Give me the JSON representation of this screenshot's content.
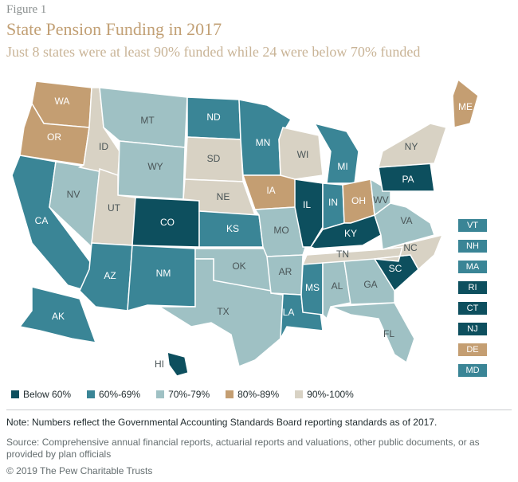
{
  "header": {
    "figure_label": "Figure 1",
    "title": "State Pension Funding in 2017",
    "subtitle": "Just 8 states were at least 90% funded while 24 were below 70% funded"
  },
  "colors": {
    "below_60": "#0d4f5e",
    "60_69": "#3a8596",
    "70_79": "#9fc1c4",
    "80_89": "#c49e72",
    "90_100": "#d8d2c4",
    "title": "#c2a075",
    "border": "#ffffff"
  },
  "map": {
    "states": [
      {
        "code": "WA",
        "category": "80_89"
      },
      {
        "code": "OR",
        "category": "80_89"
      },
      {
        "code": "CA",
        "category": "60_69"
      },
      {
        "code": "NV",
        "category": "70_79"
      },
      {
        "code": "ID",
        "category": "90_100"
      },
      {
        "code": "MT",
        "category": "70_79"
      },
      {
        "code": "WY",
        "category": "70_79"
      },
      {
        "code": "UT",
        "category": "90_100"
      },
      {
        "code": "AZ",
        "category": "60_69"
      },
      {
        "code": "CO",
        "category": "below_60"
      },
      {
        "code": "NM",
        "category": "60_69"
      },
      {
        "code": "ND",
        "category": "60_69"
      },
      {
        "code": "SD",
        "category": "90_100"
      },
      {
        "code": "NE",
        "category": "90_100"
      },
      {
        "code": "KS",
        "category": "60_69"
      },
      {
        "code": "OK",
        "category": "70_79"
      },
      {
        "code": "TX",
        "category": "70_79"
      },
      {
        "code": "MN",
        "category": "60_69"
      },
      {
        "code": "IA",
        "category": "80_89"
      },
      {
        "code": "MO",
        "category": "70_79"
      },
      {
        "code": "AR",
        "category": "70_79"
      },
      {
        "code": "LA",
        "category": "60_69"
      },
      {
        "code": "WI",
        "category": "90_100"
      },
      {
        "code": "IL",
        "category": "below_60"
      },
      {
        "code": "MI",
        "category": "60_69"
      },
      {
        "code": "IN",
        "category": "60_69"
      },
      {
        "code": "OH",
        "category": "80_89"
      },
      {
        "code": "KY",
        "category": "below_60"
      },
      {
        "code": "TN",
        "category": "90_100"
      },
      {
        "code": "MS",
        "category": "60_69"
      },
      {
        "code": "AL",
        "category": "70_79"
      },
      {
        "code": "GA",
        "category": "70_79"
      },
      {
        "code": "FL",
        "category": "70_79"
      },
      {
        "code": "SC",
        "category": "below_60"
      },
      {
        "code": "NC",
        "category": "90_100"
      },
      {
        "code": "VA",
        "category": "70_79"
      },
      {
        "code": "WV",
        "category": "70_79"
      },
      {
        "code": "PA",
        "category": "below_60"
      },
      {
        "code": "NY",
        "category": "90_100"
      },
      {
        "code": "ME",
        "category": "80_89"
      },
      {
        "code": "AK",
        "category": "60_69"
      },
      {
        "code": "HI",
        "category": "below_60"
      }
    ],
    "small_states": [
      {
        "code": "VT",
        "category": "60_69"
      },
      {
        "code": "NH",
        "category": "60_69"
      },
      {
        "code": "MA",
        "category": "60_69"
      },
      {
        "code": "RI",
        "category": "below_60"
      },
      {
        "code": "CT",
        "category": "below_60"
      },
      {
        "code": "NJ",
        "category": "below_60"
      },
      {
        "code": "DE",
        "category": "80_89"
      },
      {
        "code": "MD",
        "category": "60_69"
      }
    ]
  },
  "legend": [
    {
      "label": "Below 60%",
      "category": "below_60"
    },
    {
      "label": "60%-69%",
      "category": "60_69"
    },
    {
      "label": "70%-79%",
      "category": "70_79"
    },
    {
      "label": "80%-89%",
      "category": "80_89"
    },
    {
      "label": "90%-100%",
      "category": "90_100"
    }
  ],
  "footer": {
    "note": "Note: Numbers reflect the Governmental Accounting Standards Board reporting standards as of 2017.",
    "source": "Source: Comprehensive annual financial reports, actuarial reports and valuations, other public documents, or as provided by plan officials",
    "copyright": "© 2019 The Pew Charitable Trusts"
  }
}
